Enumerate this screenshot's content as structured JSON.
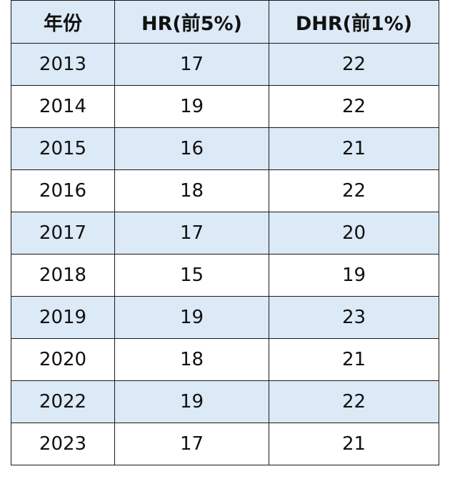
{
  "table": {
    "headers": [
      "年份",
      "HR(前5%)",
      "DHR(前1%)"
    ],
    "rows": [
      [
        "2013",
        "17",
        "22"
      ],
      [
        "2014",
        "19",
        "22"
      ],
      [
        "2015",
        "16",
        "21"
      ],
      [
        "2016",
        "18",
        "22"
      ],
      [
        "2017",
        "17",
        "20"
      ],
      [
        "2018",
        "15",
        "19"
      ],
      [
        "2019",
        "19",
        "23"
      ],
      [
        "2020",
        "18",
        "21"
      ],
      [
        "2022",
        "19",
        "22"
      ],
      [
        "2023",
        "17",
        "21"
      ]
    ]
  },
  "colors": {
    "shaded_row": "#dce9f6",
    "plain_row": "#ffffff",
    "border": "#1a1a1a",
    "text": "#111111"
  }
}
